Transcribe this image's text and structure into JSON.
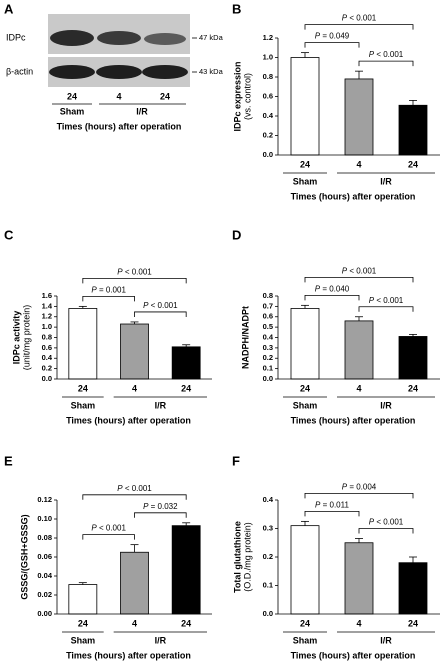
{
  "blot": {
    "panel": "A",
    "bands": [
      "IDPc",
      "β-actin"
    ],
    "markers": [
      "47 kDa",
      "43 kDa"
    ],
    "categories": [
      "24",
      "4",
      "24"
    ],
    "groups": [
      "Sham",
      "I/R"
    ],
    "xlabel": "Times (hours) after operation"
  },
  "chart_data": [
    {
      "type": "bar",
      "panel": "B",
      "ylabel": "IDPc expression",
      "ylabel_sub": "(vs. control)",
      "categories": [
        "24",
        "4",
        "24"
      ],
      "groups": [
        "Sham",
        "I/R"
      ],
      "xlabel": "Times (hours) after operation",
      "values": [
        1.0,
        0.78,
        0.51
      ],
      "errors": [
        0.05,
        0.08,
        0.05
      ],
      "colors": [
        "#ffffff",
        "#a0a0a0",
        "#000000"
      ],
      "ylim": [
        0,
        1.2
      ],
      "yticks": [
        {
          "value": 0,
          "label": "0.0"
        },
        0.2,
        0.4,
        0.6,
        0.8,
        {
          "value": 1,
          "label": "1.0"
        },
        1.2
      ],
      "annotations": [
        "P = 0.049",
        "P < 0.001",
        "P < 0.001"
      ]
    },
    {
      "type": "bar",
      "panel": "C",
      "ylabel": "IDPc activity",
      "ylabel_sub": "(unit/mg protein)",
      "categories": [
        "24",
        "4",
        "24"
      ],
      "groups": [
        "Sham",
        "I/R"
      ],
      "xlabel": "Times (hours) after operation",
      "values": [
        1.36,
        1.06,
        0.62
      ],
      "errors": [
        0.04,
        0.04,
        0.04
      ],
      "colors": [
        "#ffffff",
        "#a0a0a0",
        "#000000"
      ],
      "ylim": [
        0,
        1.6
      ],
      "yticks": [
        {
          "value": 0,
          "label": "0.0"
        },
        0.2,
        0.4,
        0.6,
        0.8,
        {
          "value": 1,
          "label": "1.0"
        },
        1.2,
        1.4,
        1.6
      ],
      "annotations": [
        "P = 0.001",
        "P < 0.001",
        "P < 0.001"
      ]
    },
    {
      "type": "bar",
      "panel": "D",
      "ylabel": "NADPH/NADPt",
      "categories": [
        "24",
        "4",
        "24"
      ],
      "groups": [
        "Sham",
        "I/R"
      ],
      "xlabel": "Times (hours) after operation",
      "values": [
        0.68,
        0.56,
        0.41
      ],
      "errors": [
        0.03,
        0.04,
        0.02
      ],
      "colors": [
        "#ffffff",
        "#a0a0a0",
        "#000000"
      ],
      "ylim": [
        0,
        0.8
      ],
      "yticks": [
        {
          "value": 0,
          "label": "0.0"
        },
        0.1,
        0.2,
        0.3,
        0.4,
        0.5,
        0.6,
        0.7,
        0.8
      ],
      "annotations": [
        "P = 0.040",
        "P < 0.001",
        "P < 0.001"
      ]
    },
    {
      "type": "bar",
      "panel": "E",
      "ylabel": "GSSG/(GSH+GSSG)",
      "categories": [
        "24",
        "4",
        "24"
      ],
      "groups": [
        "Sham",
        "I/R"
      ],
      "xlabel": "Times (hours) after operation",
      "values": [
        0.031,
        0.065,
        0.093
      ],
      "errors": [
        0.002,
        0.008,
        0.003
      ],
      "colors": [
        "#ffffff",
        "#a0a0a0",
        "#000000"
      ],
      "ylim": [
        0,
        0.12
      ],
      "yticks": [
        {
          "value": 0,
          "label": "0.00"
        },
        0.02,
        0.04,
        0.06,
        0.08,
        {
          "value": 0.1,
          "label": "0.10"
        },
        0.12
      ],
      "annotations": [
        "P < 0.001",
        "P = 0.032",
        "P < 0.001"
      ]
    },
    {
      "type": "bar",
      "panel": "F",
      "ylabel": "Total glutathione",
      "ylabel_sub": "(O.D./mg protein)",
      "categories": [
        "24",
        "4",
        "24"
      ],
      "groups": [
        "Sham",
        "I/R"
      ],
      "xlabel": "Times (hours) after operation",
      "values": [
        0.31,
        0.25,
        0.18
      ],
      "errors": [
        0.015,
        0.015,
        0.02
      ],
      "colors": [
        "#ffffff",
        "#a0a0a0",
        "#000000"
      ],
      "ylim": [
        0,
        0.4
      ],
      "yticks": [
        {
          "value": 0,
          "label": "0.0"
        },
        0.1,
        0.2,
        0.3,
        0.4
      ],
      "annotations": [
        "P = 0.011",
        "P = 0.004",
        "P < 0.001"
      ]
    }
  ]
}
